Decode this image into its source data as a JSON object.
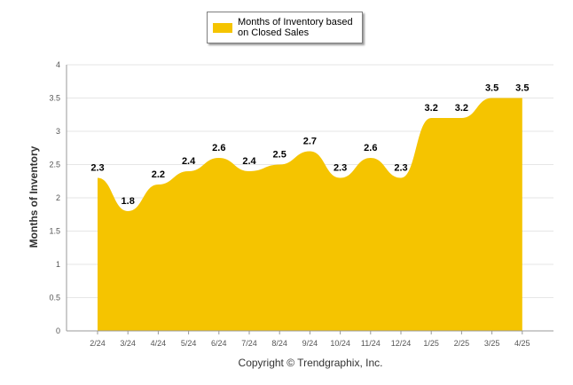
{
  "legend": {
    "label_line1": "Months of Inventory based",
    "label_line2": "on Closed Sales"
  },
  "footer": {
    "copyright": "Copyright © Trendgraphix, Inc."
  },
  "chart_data": {
    "type": "area",
    "title": "",
    "xlabel": "",
    "ylabel": "Months of Inventory",
    "categories": [
      "2/24",
      "3/24",
      "4/24",
      "5/24",
      "6/24",
      "7/24",
      "8/24",
      "9/24",
      "10/24",
      "11/24",
      "12/24",
      "1/25",
      "2/25",
      "3/25",
      "4/25"
    ],
    "series": [
      {
        "name": "Months of Inventory based on Closed Sales",
        "values": [
          2.3,
          1.8,
          2.2,
          2.4,
          2.6,
          2.4,
          2.5,
          2.7,
          2.3,
          2.6,
          2.3,
          3.2,
          3.2,
          3.5,
          3.5
        ]
      }
    ],
    "ylim": [
      0,
      4
    ],
    "yticks": [
      "0",
      "0.5",
      "1",
      "1.5",
      "2",
      "2.5",
      "3",
      "3.5",
      "4"
    ],
    "grid": true,
    "legend_position": "top-center",
    "colors": {
      "fill": "#F5C400",
      "grid": "#e6e6e6",
      "axis": "#999999"
    }
  }
}
